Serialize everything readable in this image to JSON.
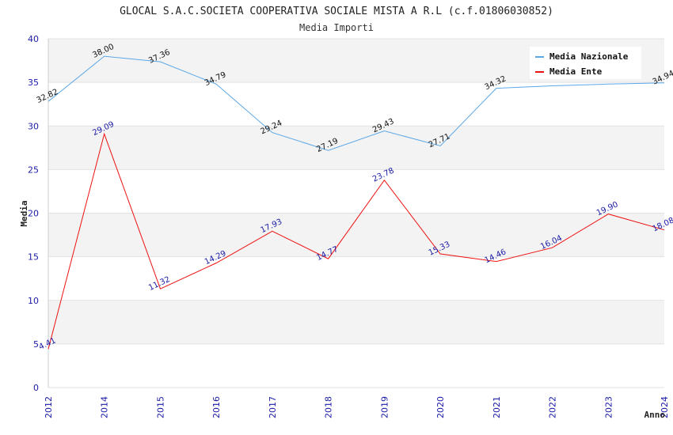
{
  "chart_data": {
    "type": "line",
    "title": "GLOCAL S.A.C.SOCIETA COOPERATIVA SOCIALE MISTA A R.L (c.f.01806030852)",
    "subtitle": "Media Importi",
    "xlabel": "Anno",
    "ylabel": "Media",
    "ylim": [
      0,
      40
    ],
    "yticks": [
      "0",
      "5",
      "10",
      "15",
      "20",
      "25",
      "30",
      "35",
      "40"
    ],
    "categories": [
      "2012",
      "2014",
      "2015",
      "2016",
      "2017",
      "2018",
      "2019",
      "2020",
      "2021",
      "2022",
      "2023",
      "2024"
    ],
    "grid": true,
    "legend_position": "top-right",
    "series": [
      {
        "name": "Media Nazionale",
        "color": "#5aa7e6",
        "label_color": "#111111",
        "values": [
          32.82,
          38.0,
          37.36,
          34.79,
          29.24,
          27.19,
          29.43,
          27.71,
          34.32,
          34.6,
          34.8,
          34.94
        ],
        "labels": [
          "32.82",
          "38.00",
          "37.36",
          "34.79",
          "29.24",
          "27.19",
          "29.43",
          "27.71",
          "34.32",
          "",
          "",
          "34.94"
        ]
      },
      {
        "name": "Media Ente",
        "color": "#ee1111",
        "label_color": "#1a1aa6",
        "values": [
          4.41,
          29.09,
          11.32,
          14.29,
          17.93,
          14.77,
          23.78,
          15.33,
          14.46,
          16.04,
          19.9,
          18.08
        ],
        "labels": [
          "4.41",
          "29.09",
          "11.32",
          "14.29",
          "17.93",
          "14.77",
          "23.78",
          "15.33",
          "14.46",
          "16.04",
          "19.90",
          "18.08"
        ]
      }
    ]
  }
}
